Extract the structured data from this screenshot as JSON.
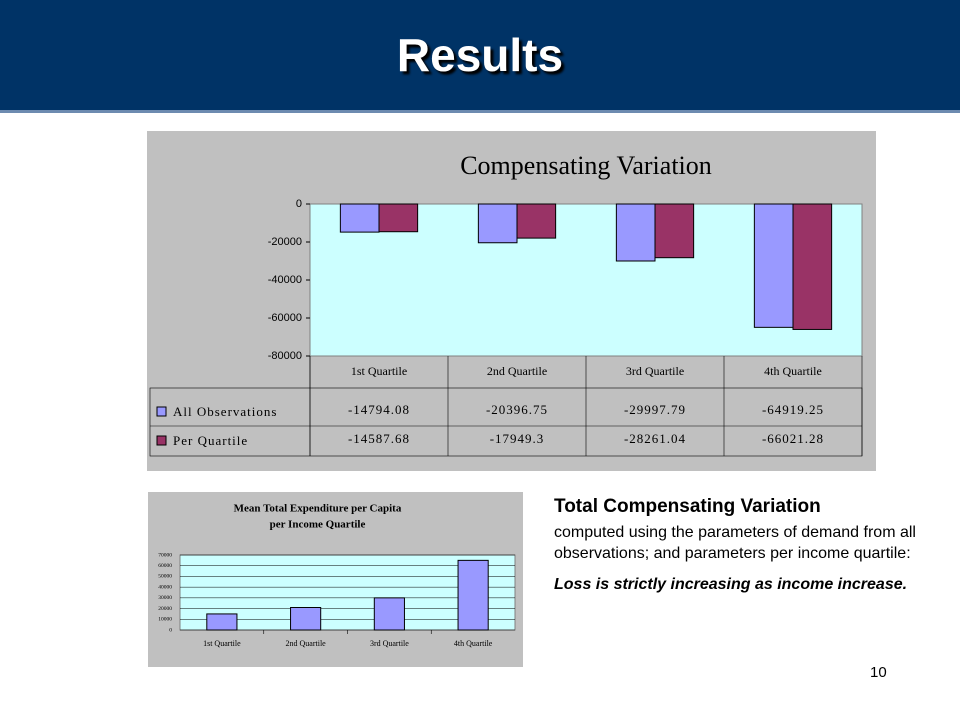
{
  "title": "Results",
  "chart_data": [
    {
      "type": "bar",
      "title": "Compensating Variation",
      "categories": [
        "1st Quartile",
        "2nd Quartile",
        "3rd Quartile",
        "4th Quartile"
      ],
      "series": [
        {
          "name": "All Observations",
          "color": "#9999ff",
          "values": [
            -14794.08,
            -20396.75,
            -29997.79,
            -64919.25
          ]
        },
        {
          "name": "Per Quartile",
          "color": "#993366",
          "values": [
            -14587.68,
            -17949.3,
            -28261.04,
            -66021.28
          ]
        }
      ],
      "ylim": [
        -80000,
        0
      ],
      "yticks": [
        -80000,
        -60000,
        -40000,
        -20000,
        0
      ],
      "grid": false,
      "data_table": true
    },
    {
      "type": "bar",
      "title": [
        "Mean Total Expenditure per Capita",
        "per Income Quartile"
      ],
      "categories": [
        "1st Quartile",
        "2nd Quartile",
        "3rd Quartile",
        "4th Quartile"
      ],
      "series": [
        {
          "color": "#9999ff",
          "values": [
            15000,
            21000,
            30000,
            65000
          ]
        }
      ],
      "ylim": [
        0,
        70000
      ],
      "yticks": [
        0,
        10000,
        20000,
        30000,
        40000,
        50000,
        60000,
        70000
      ],
      "grid": true,
      "data_table": false
    }
  ],
  "text": {
    "heading": "Total Compensating Variation",
    "body": "computed using the parameters of demand from all observations; and parameters per income quartile:",
    "emphasis": "Loss is strictly increasing as income increase."
  },
  "page_number": "10"
}
